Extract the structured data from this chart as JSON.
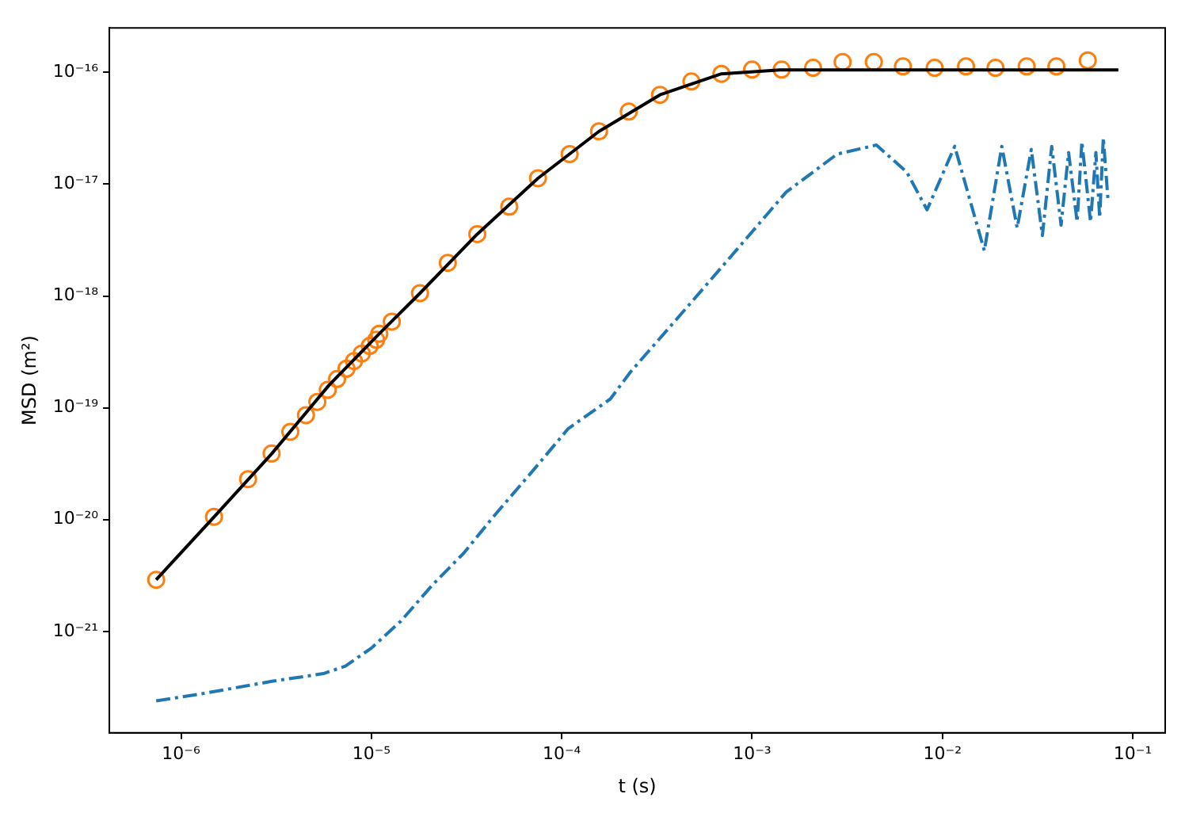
{
  "chart_data": {
    "type": "line",
    "xlabel": "t (s)",
    "ylabel": "MSD (m²)",
    "log": "xy",
    "xlim": [
      4.2e-07,
      0.148
    ],
    "ylim": [
      1.24e-22,
      2.5e-16
    ],
    "xticks": [
      {
        "value": 1e-06,
        "label": "10⁻⁶"
      },
      {
        "value": 1e-05,
        "label": "10⁻⁵"
      },
      {
        "value": 0.0001,
        "label": "10⁻⁴"
      },
      {
        "value": 0.001,
        "label": "10⁻³"
      },
      {
        "value": 0.01,
        "label": "10⁻²"
      },
      {
        "value": 0.1,
        "label": "10⁻¹"
      }
    ],
    "yticks": [
      {
        "value": 1e-21,
        "label": "10⁻²¹"
      },
      {
        "value": 1e-20,
        "label": "10⁻²⁰"
      },
      {
        "value": 1e-19,
        "label": "10⁻¹⁹"
      },
      {
        "value": 1e-18,
        "label": "10⁻¹⁸"
      },
      {
        "value": 1e-17,
        "label": "10⁻¹⁷"
      },
      {
        "value": 1e-16,
        "label": "10⁻¹⁶"
      }
    ],
    "series": [
      {
        "color": "#000000",
        "marker": "none",
        "line_style": "solid",
        "x": [
          7.4e-07,
          1.5e-06,
          3e-06,
          6e-06,
          1.1e-05,
          1.8e-05,
          3.6e-05,
          7.5e-05,
          0.000157,
          0.000328,
          0.00069,
          0.0014,
          0.003,
          0.084
        ],
        "values": [
          2.9e-21,
          1.07e-20,
          3.9e-20,
          1.6e-19,
          4.6e-19,
          1.06e-18,
          3.58e-18,
          1.13e-17,
          2.97e-17,
          6.3e-17,
          9.7e-17,
          1.05e-16,
          1.05e-16,
          1.05e-16
        ]
      },
      {
        "type": "scatter",
        "color": "#ff7f0e",
        "marker": "circle",
        "x": [
          7.4e-07,
          1.49e-06,
          2.25e-06,
          2.99e-06,
          3.75e-06,
          4.53e-06,
          5.2e-06,
          5.9e-06,
          6.6e-06,
          7.4e-06,
          8.1e-06,
          8.9e-06,
          9.8e-06,
          1.06e-05,
          1.1e-05,
          1.28e-05,
          1.8e-05,
          2.52e-05,
          3.6e-05,
          5.3e-05,
          7.5e-05,
          0.00011,
          0.000157,
          0.000225,
          0.000328,
          0.00048,
          0.00069,
          0.001,
          0.00143,
          0.00209,
          0.00299,
          0.00436,
          0.0062,
          0.0091,
          0.0133,
          0.019,
          0.0277,
          0.0397,
          0.058
        ],
        "values": [
          2.9e-21,
          1.06e-20,
          2.3e-20,
          3.9e-20,
          6.1e-20,
          8.6e-20,
          1.13e-19,
          1.45e-19,
          1.81e-19,
          2.24e-19,
          2.62e-19,
          3.06e-19,
          3.58e-19,
          4.06e-19,
          4.6e-19,
          5.9e-19,
          1.06e-18,
          1.98e-18,
          3.58e-18,
          6.3e-18,
          1.13e-17,
          1.86e-17,
          2.97e-17,
          4.46e-17,
          6.3e-17,
          8.3e-17,
          9.7e-17,
          1.06e-16,
          1.06e-16,
          1.1e-16,
          1.24e-16,
          1.24e-16,
          1.13e-16,
          1.1e-16,
          1.13e-16,
          1.1e-16,
          1.13e-16,
          1.13e-16,
          1.28e-16
        ]
      },
      {
        "color": "#1f77b4",
        "marker": "none",
        "line_style": "dashed",
        "x": [
          7.4e-07,
          1.33e-06,
          3e-06,
          5.6e-06,
          7.3e-06,
          1e-05,
          1.43e-05,
          2.09e-05,
          3.05e-05,
          4.45e-05,
          7e-05,
          0.000108,
          0.00018,
          0.00023,
          0.00043,
          0.00081,
          0.00151,
          0.0028,
          0.0045,
          0.0065,
          0.0083,
          0.0116,
          0.0166,
          0.0205,
          0.0247,
          0.0293,
          0.0335,
          0.0375,
          0.042,
          0.046,
          0.051,
          0.054,
          0.06,
          0.064,
          0.067,
          0.07,
          0.074
        ],
        "values": [
          2.39e-22,
          2.8e-22,
          3.58e-22,
          4.2e-22,
          4.9e-22,
          7.1e-22,
          1.24e-21,
          2.6e-21,
          5e-21,
          1.1e-20,
          2.7e-20,
          6.5e-20,
          1.2e-19,
          2.1e-19,
          7.1e-19,
          2.47e-18,
          8.5e-18,
          1.86e-17,
          2.24e-17,
          1.28e-17,
          5.9e-18,
          2.18e-17,
          2.54e-18,
          2.18e-17,
          4.06e-18,
          2.05e-17,
          3.47e-18,
          2.18e-17,
          4.3e-18,
          1.92e-17,
          4.6e-18,
          2.4e-17,
          4.6e-18,
          1.92e-17,
          5e-18,
          2.6e-17,
          7.5e-18
        ]
      }
    ]
  }
}
